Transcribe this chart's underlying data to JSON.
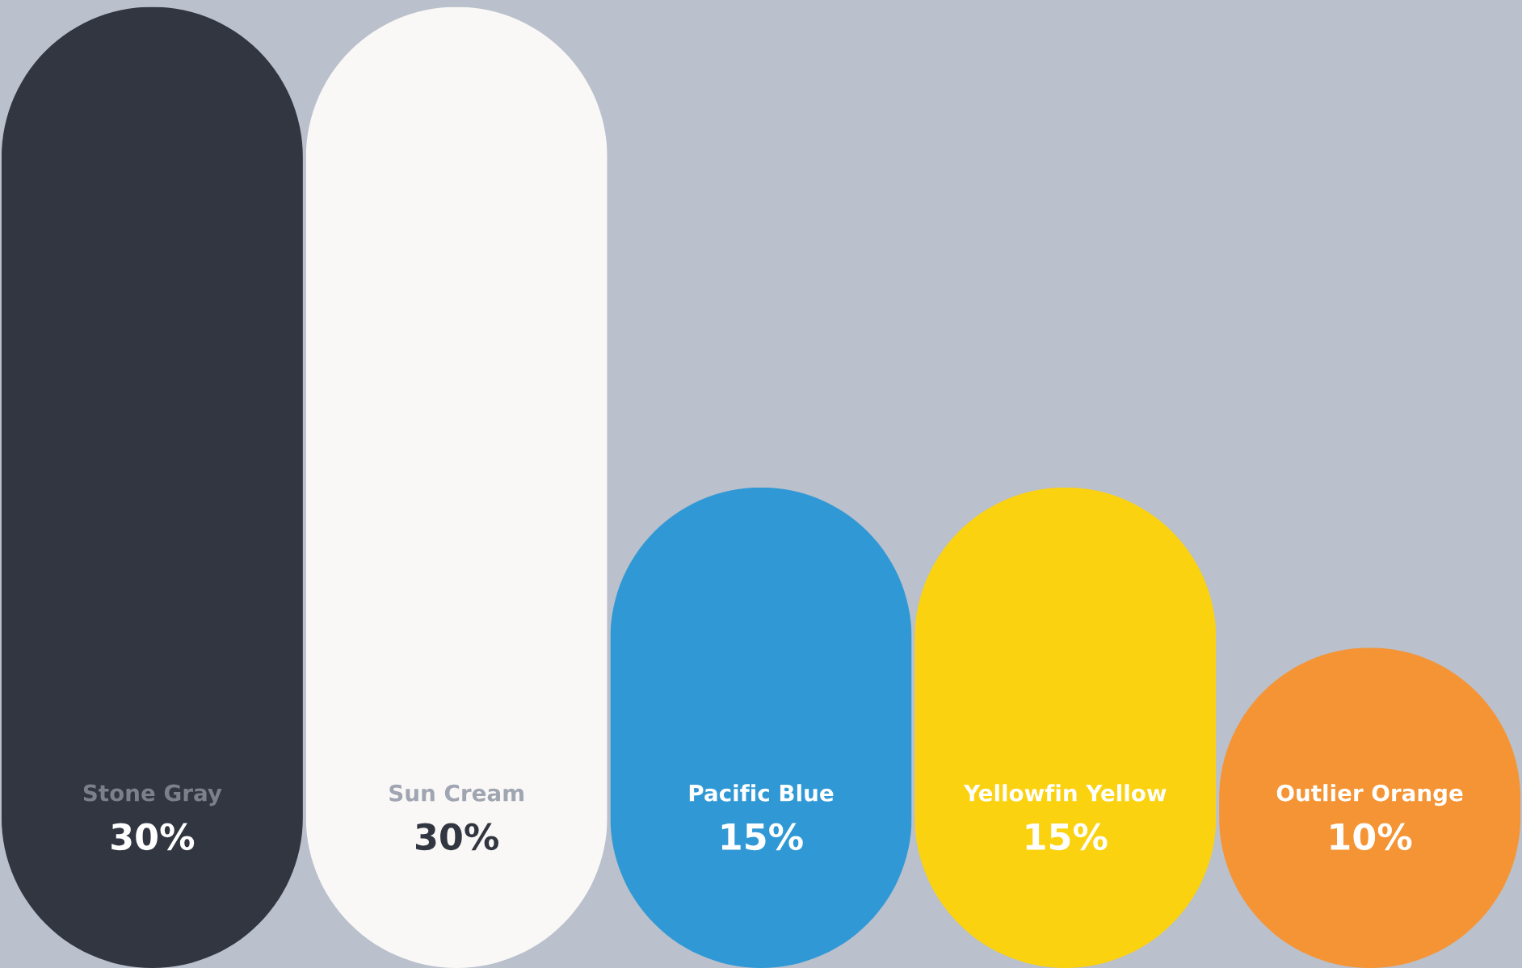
{
  "chart_data": {
    "type": "bar",
    "categories": [
      "Stone Gray",
      "Sun Cream",
      "Pacific Blue",
      "Yellowfin Yellow",
      "Outlier Orange"
    ],
    "values": [
      30,
      30,
      15,
      15,
      10
    ],
    "colors": [
      "#323641",
      "#f9f8f6",
      "#3099d5",
      "#fbd20f",
      "#f59434"
    ],
    "value_labels": [
      "30%",
      "30%",
      "15%",
      "15%",
      "10%"
    ],
    "ylim": [
      0,
      30
    ]
  }
}
